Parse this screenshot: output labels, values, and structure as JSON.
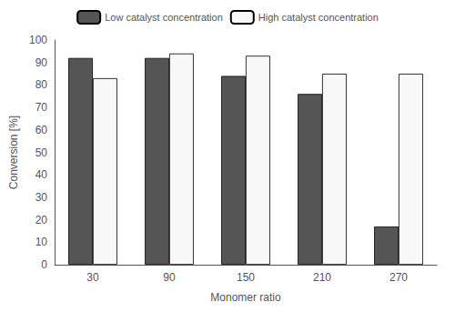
{
  "chart_data": {
    "type": "bar",
    "categories": [
      30,
      90,
      150,
      210,
      270
    ],
    "series": [
      {
        "name": "Low catalyst concentration",
        "color": "#555555",
        "values": [
          92,
          92,
          84,
          76,
          17
        ]
      },
      {
        "name": "High catalyst concentration",
        "color": "#f8f8f8",
        "values": [
          83,
          94,
          93,
          85,
          85
        ]
      }
    ],
    "xlabel": "Monomer ratio",
    "ylabel": "Conversion [%]",
    "ylim": [
      0,
      100
    ],
    "yticks": [
      0,
      10,
      20,
      30,
      40,
      50,
      60,
      70,
      80,
      90,
      100
    ],
    "grid": false,
    "legend": "top"
  }
}
